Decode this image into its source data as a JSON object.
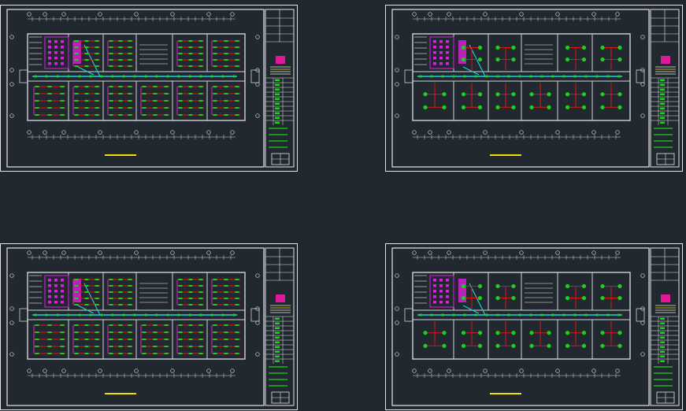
{
  "viewer": {
    "background": "#212830"
  },
  "colors": {
    "frame": "#e6e6e6",
    "wall": "#cfd3d6",
    "dim": "#d9d9d9",
    "wire_red": "#e01616",
    "fixture_green": "#19d219",
    "conduit_cyan": "#1fd3e0",
    "toilet_magenta": "#e01ee0",
    "title_yellow": "#f0e000",
    "logo_magenta": "#e0189a",
    "hatch_gray": "#7a7a7a"
  },
  "sheets": [
    {
      "id": "tl",
      "style": "dense"
    },
    {
      "id": "tr",
      "style": "sparse"
    },
    {
      "id": "bl",
      "style": "dense"
    },
    {
      "id": "br",
      "style": "sparse"
    }
  ]
}
